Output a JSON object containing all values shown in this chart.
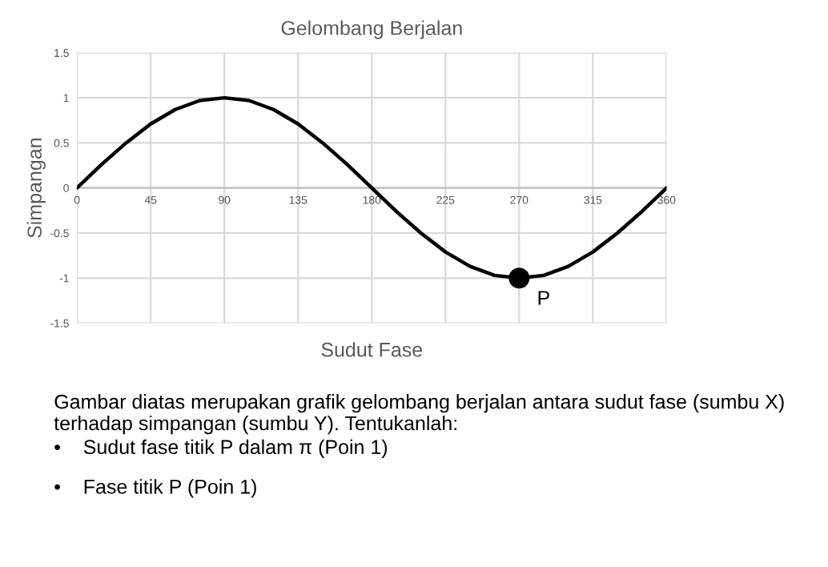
{
  "chart_data": {
    "type": "line",
    "title": "Gelombang Berjalan",
    "xlabel": "Sudut Fase",
    "ylabel": "Simpangan",
    "x": [
      0,
      15,
      30,
      45,
      60,
      75,
      90,
      105,
      120,
      135,
      150,
      165,
      180,
      195,
      210,
      225,
      240,
      255,
      270,
      285,
      300,
      315,
      330,
      345,
      360
    ],
    "series": [
      {
        "color": "#000000",
        "marker": "none",
        "values": [
          0,
          0.26,
          0.5,
          0.71,
          0.87,
          0.97,
          1,
          0.97,
          0.87,
          0.71,
          0.5,
          0.26,
          0,
          -0.26,
          -0.5,
          -0.71,
          -0.87,
          -0.97,
          -1,
          -0.97,
          -0.87,
          -0.71,
          -0.5,
          -0.26,
          0
        ]
      },
      {
        "type": "scatter",
        "marker": "circle",
        "color": "#000000",
        "x": [
          270
        ],
        "values": [
          -1
        ]
      }
    ],
    "xlim": [
      0,
      360
    ],
    "ylim": [
      -1.5,
      1.5
    ],
    "xticks": [
      0,
      45,
      90,
      135,
      180,
      225,
      270,
      315,
      360
    ],
    "yticks": [
      -1.5,
      -1,
      -0.5,
      0,
      0.5,
      1,
      1.5
    ],
    "grid": true,
    "line_style": "solid",
    "annotations": [
      {
        "text": "P",
        "x": 270,
        "y": -1
      },
      "Gambar diatas merupakan grafik gelombang berjalan antara sudut fase (sumbu X)  terhadap simpangan (sumbu Y). Tentukanlah:",
      "•    Sudut fase titik P dalam π (Poin 1)",
      "•    Fase titik P (Poin 1)"
    ]
  }
}
